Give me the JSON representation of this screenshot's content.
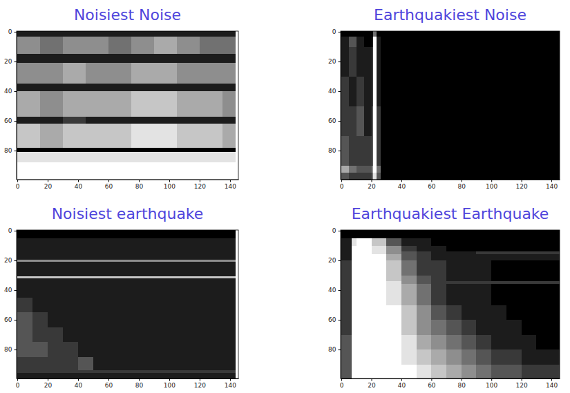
{
  "chart_data": [
    {
      "type": "heatmap",
      "title": "Noisiest Noise",
      "xlim": [
        -0.5,
        145.5
      ],
      "ylim": [
        99.5,
        -0.5
      ],
      "xticks": [
        0,
        20,
        40,
        60,
        80,
        100,
        120,
        140
      ],
      "yticks": [
        0,
        20,
        40,
        60,
        80
      ],
      "zlim": [
        0,
        9
      ],
      "x_edges": [
        -0.5,
        15,
        30,
        45,
        60,
        75,
        90,
        105,
        120,
        135,
        143.5,
        145.5
      ],
      "y_edges": [
        -0.5,
        3,
        15,
        21,
        35,
        40,
        57,
        62,
        78,
        81,
        88,
        99.5
      ],
      "cells": [
        [
          1,
          1,
          1,
          1,
          1,
          1,
          1,
          1,
          1,
          1,
          9
        ],
        [
          5,
          4,
          5,
          5,
          4,
          5,
          6,
          5,
          4,
          4,
          9
        ],
        [
          1,
          1,
          1,
          1,
          1,
          1,
          1,
          1,
          1,
          1,
          9
        ],
        [
          5,
          5,
          6,
          5,
          5,
          6,
          6,
          5,
          5,
          5,
          9
        ],
        [
          1,
          1,
          1,
          1,
          1,
          1,
          1,
          1,
          1,
          1,
          9
        ],
        [
          6,
          5,
          6,
          6,
          6,
          7,
          7,
          6,
          6,
          5,
          9
        ],
        [
          1,
          1,
          2,
          1,
          1,
          1,
          1,
          1,
          1,
          1,
          9
        ],
        [
          7,
          6,
          7,
          7,
          7,
          8,
          8,
          7,
          7,
          6,
          9
        ],
        [
          0,
          0,
          0,
          0,
          0,
          0,
          0,
          0,
          0,
          0,
          9
        ],
        [
          8,
          8,
          8,
          8,
          8,
          8,
          8,
          8,
          8,
          8,
          9
        ],
        [
          9,
          9,
          9,
          9,
          9,
          9,
          9,
          9,
          9,
          9,
          9
        ]
      ]
    },
    {
      "type": "heatmap",
      "title": "Earthquakiest Noise",
      "xlim": [
        -0.5,
        145.5
      ],
      "ylim": [
        99.5,
        -0.5
      ],
      "xticks": [
        0,
        20,
        40,
        60,
        80,
        100,
        120,
        140
      ],
      "yticks": [
        0,
        20,
        40,
        60,
        80
      ],
      "zlim": [
        0,
        9
      ],
      "x_edges": [
        -0.5,
        5,
        10,
        15,
        20,
        21,
        23.5,
        26,
        145.5
      ],
      "y_edges": [
        -0.5,
        3,
        10,
        30,
        50,
        70,
        90,
        95,
        99.5
      ],
      "cells": [
        [
          0,
          0,
          0,
          0,
          0,
          4,
          0,
          0
        ],
        [
          1,
          3,
          1,
          0,
          1,
          9,
          1,
          0
        ],
        [
          1,
          2,
          1,
          1,
          2,
          9,
          1,
          0
        ],
        [
          2,
          1,
          2,
          1,
          2,
          9,
          1,
          0
        ],
        [
          2,
          2,
          3,
          1,
          3,
          9,
          2,
          0
        ],
        [
          3,
          2,
          2,
          2,
          3,
          9,
          2,
          0
        ],
        [
          6,
          4,
          3,
          3,
          5,
          9,
          4,
          0
        ],
        [
          3,
          2,
          2,
          2,
          4,
          8,
          3,
          0
        ]
      ]
    },
    {
      "type": "heatmap",
      "title": "Noisiest earthquake",
      "xlim": [
        -0.5,
        145.5
      ],
      "ylim": [
        99.5,
        -0.5
      ],
      "xticks": [
        0,
        20,
        40,
        60,
        80,
        100,
        120,
        140
      ],
      "yticks": [
        0,
        20,
        40,
        60,
        80
      ],
      "zlim": [
        0,
        9
      ],
      "x_edges": [
        -0.5,
        10,
        20,
        30,
        40,
        50,
        70,
        90,
        110,
        130,
        143.5,
        145.5
      ],
      "y_edges": [
        -0.5,
        5,
        19.5,
        21,
        30.5,
        32,
        45,
        55,
        65,
        75,
        85,
        94,
        96,
        99.5
      ],
      "cells": [
        [
          0,
          0,
          0,
          0,
          0,
          0,
          0,
          0,
          0,
          0,
          9
        ],
        [
          1,
          1,
          1,
          1,
          1,
          1,
          1,
          1,
          1,
          1,
          9
        ],
        [
          5,
          5,
          5,
          5,
          5,
          5,
          5,
          5,
          5,
          5,
          9
        ],
        [
          1,
          1,
          1,
          1,
          1,
          1,
          1,
          1,
          1,
          1,
          9
        ],
        [
          7,
          7,
          7,
          7,
          7,
          7,
          7,
          7,
          7,
          7,
          9
        ],
        [
          1,
          1,
          1,
          1,
          1,
          1,
          1,
          1,
          1,
          1,
          9
        ],
        [
          2,
          1,
          1,
          1,
          1,
          1,
          1,
          1,
          1,
          1,
          9
        ],
        [
          3,
          2,
          1,
          1,
          1,
          1,
          1,
          1,
          1,
          1,
          9
        ],
        [
          3,
          2,
          2,
          1,
          1,
          1,
          1,
          1,
          1,
          1,
          9
        ],
        [
          3,
          3,
          2,
          2,
          1,
          1,
          1,
          1,
          1,
          1,
          9
        ],
        [
          2,
          2,
          2,
          2,
          3,
          1,
          1,
          1,
          1,
          1,
          9
        ],
        [
          2,
          2,
          2,
          2,
          2,
          2,
          2,
          2,
          2,
          2,
          9
        ],
        [
          1,
          1,
          1,
          1,
          1,
          1,
          1,
          1,
          1,
          1,
          9
        ]
      ]
    },
    {
      "type": "heatmap",
      "title": "Earthquakiest Earthquake",
      "xlim": [
        -0.5,
        145.5
      ],
      "ylim": [
        99.5,
        -0.5
      ],
      "xticks": [
        0,
        20,
        40,
        60,
        80,
        100,
        120,
        140
      ],
      "yticks": [
        0,
        20,
        40,
        60,
        80
      ],
      "zlim": [
        0,
        9
      ],
      "x_edges": [
        -0.5,
        7,
        10,
        20,
        30,
        40,
        50,
        60,
        70,
        80,
        90,
        100,
        110,
        120,
        130,
        145.5
      ],
      "y_edges": [
        -0.5,
        5,
        10,
        14,
        16,
        20,
        30,
        34,
        36,
        50,
        60,
        70,
        80,
        90,
        99.5
      ],
      "cells": [
        [
          0,
          0,
          0,
          0,
          0,
          0,
          0,
          0,
          0,
          0,
          0,
          0,
          0,
          0,
          0
        ],
        [
          1,
          8,
          9,
          7,
          3,
          1,
          1,
          0,
          0,
          0,
          0,
          0,
          0,
          0,
          0
        ],
        [
          1,
          9,
          9,
          8,
          5,
          2,
          1,
          1,
          0,
          0,
          0,
          0,
          0,
          0,
          0
        ],
        [
          1,
          9,
          9,
          8,
          5,
          3,
          2,
          1,
          1,
          1,
          2,
          2,
          2,
          2,
          2
        ],
        [
          1,
          9,
          9,
          9,
          6,
          3,
          2,
          1,
          1,
          1,
          1,
          1,
          1,
          1,
          1
        ],
        [
          2,
          9,
          9,
          9,
          7,
          4,
          2,
          2,
          1,
          1,
          1,
          0,
          0,
          0,
          0
        ],
        [
          2,
          9,
          9,
          9,
          7,
          5,
          3,
          2,
          1,
          1,
          1,
          0,
          0,
          0,
          0
        ],
        [
          2,
          9,
          9,
          9,
          8,
          5,
          3,
          2,
          2,
          2,
          2,
          2,
          2,
          2,
          2
        ],
        [
          2,
          9,
          9,
          9,
          8,
          6,
          4,
          2,
          1,
          1,
          1,
          0,
          0,
          0,
          0
        ],
        [
          2,
          9,
          9,
          9,
          9,
          7,
          5,
          3,
          2,
          1,
          1,
          1,
          0,
          0,
          0
        ],
        [
          2,
          9,
          9,
          9,
          9,
          7,
          5,
          4,
          3,
          2,
          1,
          1,
          1,
          0,
          0
        ],
        [
          3,
          9,
          9,
          9,
          9,
          8,
          6,
          5,
          4,
          3,
          2,
          1,
          1,
          1,
          0
        ],
        [
          3,
          9,
          9,
          9,
          9,
          8,
          7,
          6,
          5,
          4,
          3,
          2,
          2,
          1,
          1
        ],
        [
          3,
          9,
          9,
          9,
          9,
          9,
          8,
          7,
          6,
          5,
          4,
          3,
          3,
          2,
          2
        ]
      ]
    }
  ]
}
